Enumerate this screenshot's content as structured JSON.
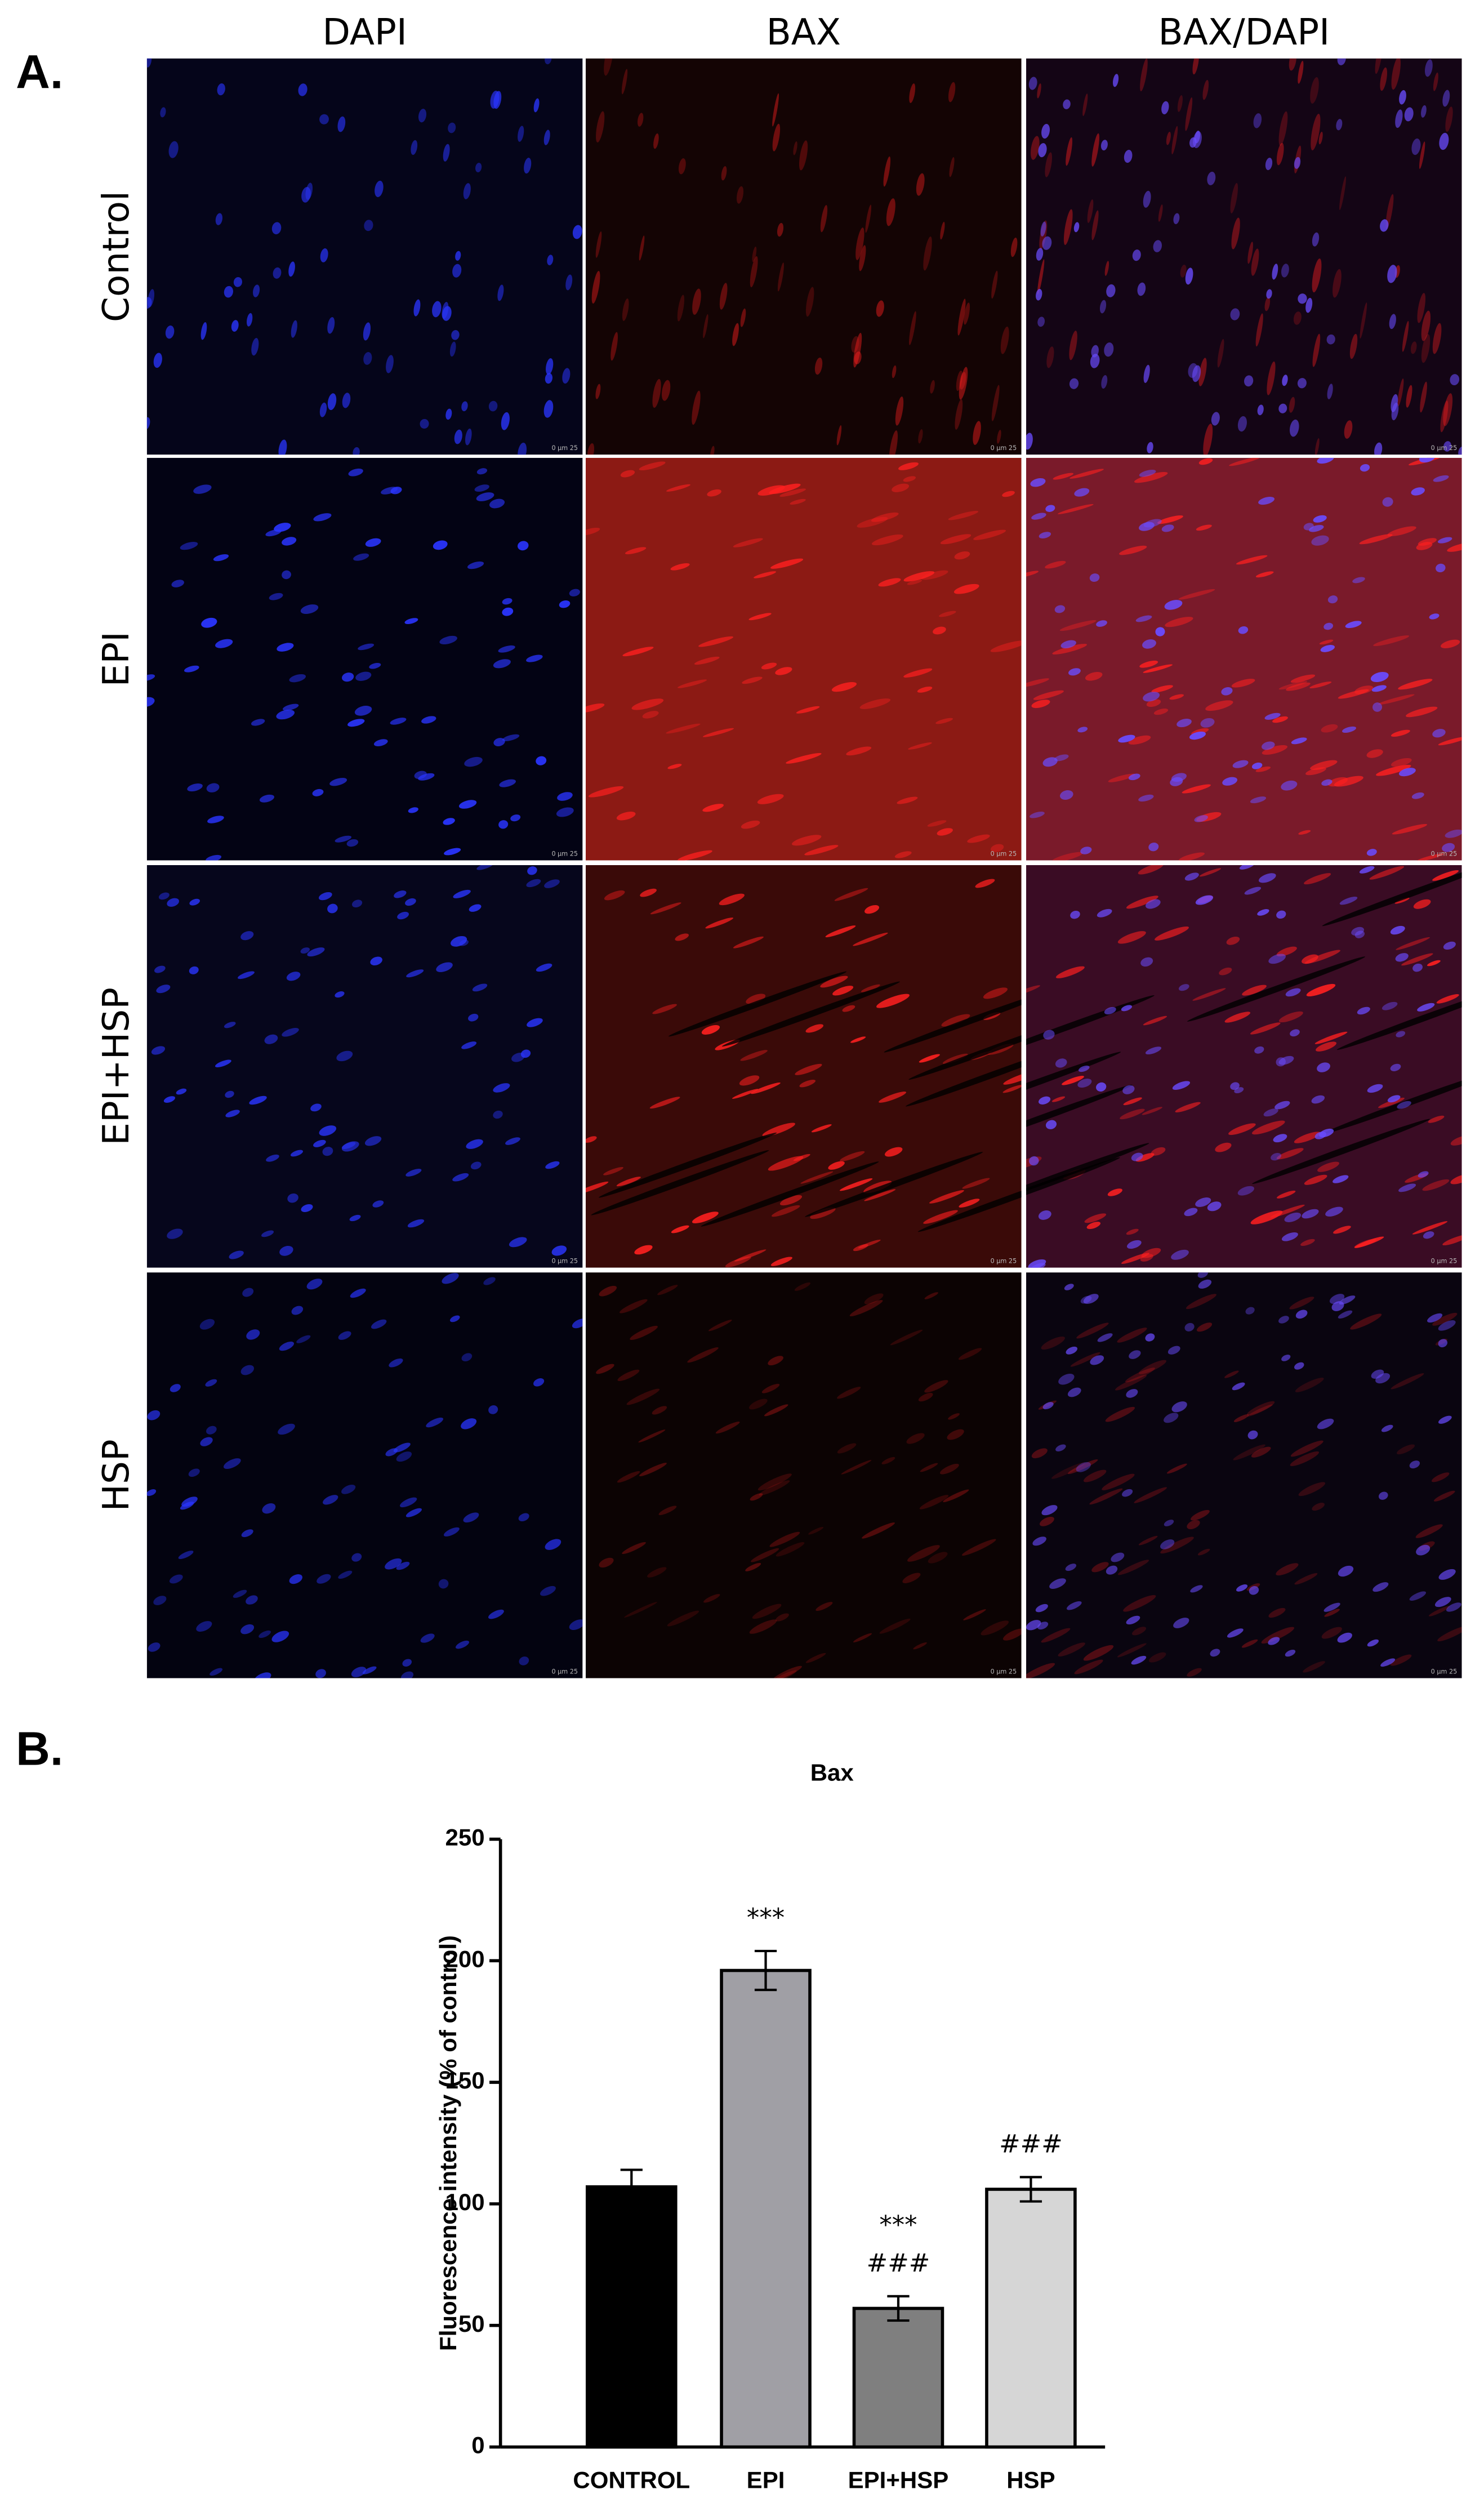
{
  "figure": {
    "panel_a_label": "A.",
    "panel_b_label": "B.",
    "columns": [
      "DAPI",
      "BAX",
      "BAX/DAPI"
    ],
    "rows": [
      "Control",
      "EPI",
      "EPI+HSP",
      "HSP"
    ],
    "scale_bar": "0   μm   25"
  },
  "chart_data": {
    "type": "bar",
    "title": "Bax",
    "y_label": "Fluorescence intensity (% of control)",
    "categories": [
      "CONTROL",
      "EPI",
      "EPI+HSP",
      "HSP"
    ],
    "values": [
      107,
      196,
      57,
      106
    ],
    "errors": [
      7,
      8,
      5,
      5
    ],
    "colors": [
      "#000000",
      "#a09fa5",
      "#7f7f7f",
      "#d6d6d6"
    ],
    "bar_annotations": [
      [],
      [
        "***"
      ],
      [
        "***",
        "###"
      ],
      [
        "###"
      ]
    ],
    "ylim": [
      0,
      250
    ],
    "yticks": [
      0,
      50,
      100,
      150,
      200,
      250
    ],
    "grid": false
  }
}
